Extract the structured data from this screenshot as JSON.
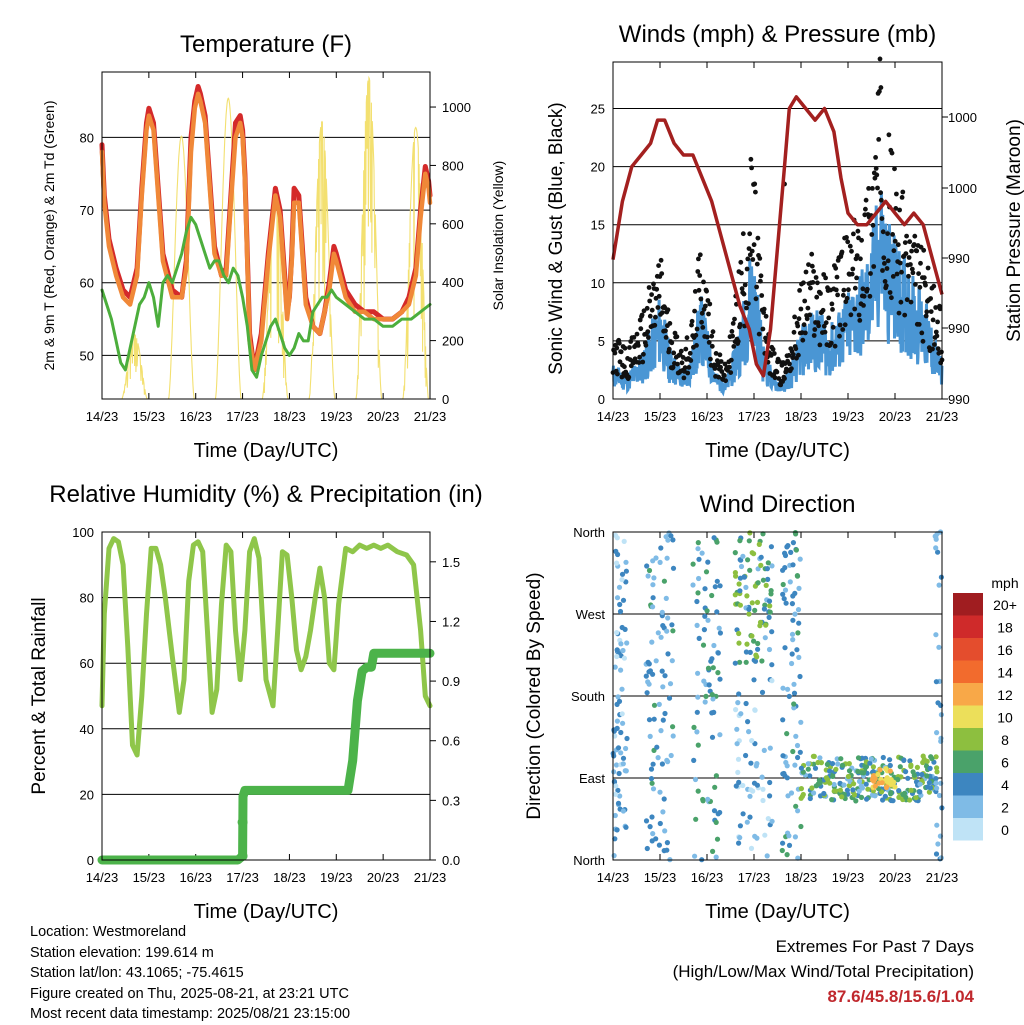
{
  "chart_data": [
    {
      "type": "line",
      "title": "Temperature (F)",
      "xlabel": "Time (Day/UTC)",
      "ylabel": "2m & 9m T (Red, Orange) & 2m Td (Green)",
      "y2label": "Solar Insolation (Yellow)",
      "x_ticks": [
        "14/23",
        "15/23",
        "16/23",
        "17/23",
        "18/23",
        "19/23",
        "20/23",
        "21/23"
      ],
      "xlim": [
        0,
        7
      ],
      "ylim": [
        44,
        89
      ],
      "y_ticks": [
        50,
        60,
        70,
        80
      ],
      "y2lim": [
        0,
        1120
      ],
      "y2_ticks": [
        0,
        200,
        400,
        600,
        800,
        1000
      ],
      "grid": "horizontal",
      "series": [
        {
          "color": "#d42a2a",
          "x": [
            0,
            0.05,
            0.15,
            0.3,
            0.45,
            0.6,
            0.75,
            0.85,
            0.95,
            1.0,
            1.05,
            1.1,
            1.2,
            1.3,
            1.5,
            1.7,
            1.8,
            1.9,
            1.98,
            2.05,
            2.1,
            2.2,
            2.4,
            2.55,
            2.65,
            2.75,
            2.85,
            2.95,
            3.0,
            3.05,
            3.1,
            3.15,
            3.25,
            3.4,
            3.55,
            3.7,
            3.8,
            3.9,
            3.95,
            4.0,
            4.05,
            4.1,
            4.2,
            4.35,
            4.5,
            4.65,
            4.75,
            4.85,
            4.95,
            5.0,
            5.2,
            5.4,
            5.6,
            5.8,
            6.0,
            6.2,
            6.4,
            6.55,
            6.7,
            6.8,
            6.9,
            6.97,
            7.0
          ],
          "values": [
            79,
            72,
            66,
            62,
            59,
            58,
            62,
            73,
            82,
            84,
            83,
            82,
            73,
            64,
            59,
            58,
            63,
            80,
            85,
            87,
            86,
            83,
            65,
            61,
            62,
            72,
            82,
            83,
            81,
            75,
            64,
            53,
            48,
            53,
            64,
            73,
            70,
            61,
            56,
            58,
            64,
            73,
            72,
            58,
            54,
            53,
            56,
            60,
            65,
            64,
            59,
            57,
            56,
            56,
            55,
            55,
            56,
            58,
            62,
            70,
            76,
            74,
            72
          ]
        },
        {
          "color": "#f08838",
          "x": [
            0,
            0.05,
            0.15,
            0.3,
            0.45,
            0.6,
            0.75,
            0.85,
            0.95,
            1.0,
            1.05,
            1.1,
            1.2,
            1.3,
            1.5,
            1.7,
            1.8,
            1.9,
            1.98,
            2.05,
            2.1,
            2.2,
            2.4,
            2.55,
            2.65,
            2.75,
            2.85,
            2.95,
            3.0,
            3.05,
            3.1,
            3.15,
            3.25,
            3.4,
            3.55,
            3.7,
            3.8,
            3.9,
            3.95,
            4.0,
            4.05,
            4.1,
            4.2,
            4.35,
            4.5,
            4.65,
            4.75,
            4.85,
            4.95,
            5.0,
            5.2,
            5.4,
            5.6,
            5.8,
            6.0,
            6.2,
            6.4,
            6.55,
            6.7,
            6.8,
            6.9,
            6.97,
            7.0
          ],
          "values": [
            78,
            71,
            65,
            61,
            58,
            57,
            61,
            72,
            81,
            83,
            82,
            81,
            72,
            63,
            58,
            58,
            62,
            78,
            84,
            86,
            85,
            82,
            64,
            61,
            61,
            71,
            80,
            82,
            80,
            74,
            63,
            52,
            48,
            52,
            63,
            72,
            69,
            60,
            55,
            58,
            63,
            71,
            71,
            57,
            54,
            53,
            56,
            59,
            64,
            63,
            58,
            56,
            56,
            55,
            55,
            55,
            56,
            57,
            61,
            69,
            75,
            73,
            71
          ]
        },
        {
          "color": "#4cae3c",
          "x": [
            0,
            0.1,
            0.2,
            0.3,
            0.4,
            0.5,
            0.6,
            0.7,
            0.8,
            0.9,
            1.0,
            1.1,
            1.2,
            1.3,
            1.4,
            1.5,
            1.6,
            1.7,
            1.8,
            1.9,
            2.0,
            2.1,
            2.2,
            2.3,
            2.4,
            2.5,
            2.6,
            2.7,
            2.8,
            2.9,
            3.0,
            3.1,
            3.2,
            3.3,
            3.4,
            3.5,
            3.6,
            3.7,
            3.8,
            3.9,
            4.0,
            4.1,
            4.2,
            4.3,
            4.4,
            4.5,
            4.6,
            4.7,
            4.8,
            4.9,
            5.0,
            5.2,
            5.4,
            5.6,
            5.8,
            6.0,
            6.2,
            6.4,
            6.6,
            6.8,
            7.0
          ],
          "values": [
            59,
            57,
            55,
            52,
            49,
            48,
            51,
            54,
            57,
            58,
            60,
            58,
            54,
            60,
            61,
            60,
            62,
            64,
            67,
            69,
            68,
            66,
            64,
            62,
            63,
            63,
            61,
            60,
            62,
            61,
            58,
            54,
            48,
            47,
            50,
            52,
            54,
            55,
            53,
            51,
            50,
            51,
            53,
            52,
            52,
            56,
            57,
            58,
            58,
            59,
            58,
            57,
            56,
            55,
            55,
            54,
            54,
            55,
            55,
            56,
            57
          ]
        }
      ],
      "insolation": {
        "color": "#f3e070",
        "days": [
          0,
          1,
          2,
          3,
          4,
          5,
          6
        ],
        "peaks": [
          220,
          900,
          1030,
          700,
          950,
          1100,
          930
        ]
      }
    },
    {
      "type": "scatter",
      "title": "Winds (mph) & Pressure (mb)",
      "xlabel": "Time (Day/UTC)",
      "ylabel": "Sonic Wind & Gust (Blue, Black)",
      "y2label": "Station Pressure (Maroon)",
      "x_ticks": [
        "14/23",
        "15/23",
        "16/23",
        "17/23",
        "18/23",
        "19/23",
        "20/23",
        "21/23"
      ],
      "xlim": [
        0,
        7
      ],
      "ylim": [
        0,
        29
      ],
      "y_ticks": [
        0,
        5,
        10,
        15,
        20,
        25
      ],
      "y2_ticks": [
        "990",
        "990",
        "990",
        "1000",
        "1000"
      ],
      "grid": "horizontal",
      "series": [
        {
          "name": "",
          "color": "#111111",
          "x": [
            0,
            0.3,
            0.6,
            0.9,
            1.0,
            1.2,
            1.5,
            1.7,
            1.8,
            1.9,
            2.0,
            2.2,
            2.4,
            2.6,
            2.8,
            2.95,
            3.05,
            3.2,
            3.4,
            3.6,
            3.8,
            4.0,
            4.2,
            4.4,
            4.6,
            4.8,
            5.0,
            5.2,
            5.4,
            5.5,
            5.6,
            5.7,
            5.8,
            6.0,
            6.2,
            6.4,
            6.6,
            6.8,
            7.0
          ],
          "values": [
            4,
            3,
            5,
            8,
            9,
            5,
            3,
            5,
            8,
            10,
            7,
            3,
            2,
            6,
            11,
            15,
            12,
            6,
            3,
            2,
            4,
            7,
            9,
            8,
            7,
            9,
            10,
            11,
            13,
            15,
            18,
            21,
            17,
            14,
            12,
            10,
            9,
            7,
            5
          ]
        },
        {
          "name": "",
          "color": "#4a96d4",
          "x": [
            0,
            0.3,
            0.6,
            0.9,
            1.0,
            1.2,
            1.5,
            1.7,
            1.8,
            1.9,
            2.0,
            2.2,
            2.4,
            2.6,
            2.8,
            2.95,
            3.05,
            3.2,
            3.4,
            3.6,
            3.8,
            4.0,
            4.2,
            4.4,
            4.6,
            4.8,
            5.0,
            5.2,
            5.4,
            5.5,
            5.6,
            5.7,
            5.8,
            6.0,
            6.2,
            6.4,
            6.6,
            6.8,
            7.0
          ],
          "values": [
            2,
            1.5,
            2.5,
            5,
            6,
            3,
            1.5,
            3,
            5,
            6,
            4,
            1.5,
            1,
            3,
            6,
            9,
            7,
            3,
            1.5,
            1,
            2,
            4,
            5,
            5,
            4,
            5,
            6,
            7,
            8,
            9,
            11,
            13,
            11,
            9,
            8,
            7,
            6,
            4,
            2
          ]
        },
        {
          "name": "",
          "color": "#a3201f",
          "x": [
            0,
            0.2,
            0.4,
            0.6,
            0.8,
            0.95,
            1.1,
            1.3,
            1.5,
            1.7,
            1.9,
            2.1,
            2.3,
            2.5,
            2.7,
            2.9,
            3.05,
            3.2,
            3.35,
            3.5,
            3.65,
            3.75,
            3.9,
            4.1,
            4.3,
            4.5,
            4.7,
            4.85,
            5.0,
            5.2,
            5.4,
            5.6,
            5.8,
            6.0,
            6.2,
            6.4,
            6.6,
            6.8,
            7.0
          ],
          "values": [
            12,
            17,
            20,
            21,
            22,
            24,
            24,
            22,
            21,
            21,
            19,
            17,
            14,
            11,
            8,
            6,
            3,
            2,
            6,
            13,
            20,
            25,
            26,
            25,
            24,
            25,
            23,
            19,
            16,
            15,
            15,
            16,
            17,
            16,
            15,
            16,
            15,
            12,
            9
          ]
        }
      ]
    },
    {
      "type": "line",
      "title": "Relative Humidity (%) & Precipitation (in)",
      "xlabel": "Time (Day/UTC)",
      "ylabel": "Percent & Total Rainfall",
      "x_ticks": [
        "14/23",
        "15/23",
        "16/23",
        "17/23",
        "18/23",
        "19/23",
        "20/23",
        "21/23"
      ],
      "xlim": [
        0,
        7
      ],
      "ylim": [
        0,
        100
      ],
      "y_ticks": [
        0,
        20,
        40,
        60,
        80,
        100
      ],
      "y2lim": [
        0,
        1.65
      ],
      "y2_ticks": [
        "0.0",
        "0.3",
        "0.6",
        "0.9",
        "1.2",
        "1.5"
      ],
      "grid": "horizontal",
      "series": [
        {
          "color": "#8fc64a",
          "x": [
            0,
            0.05,
            0.15,
            0.25,
            0.35,
            0.45,
            0.55,
            0.65,
            0.75,
            0.85,
            0.95,
            1.05,
            1.15,
            1.25,
            1.35,
            1.5,
            1.65,
            1.75,
            1.85,
            1.95,
            2.05,
            2.15,
            2.25,
            2.35,
            2.45,
            2.55,
            2.65,
            2.75,
            2.85,
            2.95,
            3.05,
            3.15,
            3.25,
            3.35,
            3.5,
            3.65,
            3.75,
            3.85,
            3.95,
            4.05,
            4.15,
            4.25,
            4.35,
            4.45,
            4.55,
            4.65,
            4.75,
            4.85,
            4.95,
            5.05,
            5.2,
            5.35,
            5.5,
            5.65,
            5.8,
            5.95,
            6.1,
            6.3,
            6.5,
            6.65,
            6.8,
            6.9,
            7.0
          ],
          "values": [
            47,
            75,
            95,
            98,
            97,
            90,
            65,
            35,
            32,
            50,
            75,
            95,
            95,
            90,
            80,
            62,
            45,
            55,
            85,
            96,
            97,
            94,
            70,
            45,
            52,
            78,
            96,
            94,
            70,
            55,
            70,
            94,
            98,
            92,
            55,
            47,
            70,
            94,
            93,
            80,
            64,
            58,
            62,
            70,
            80,
            89,
            80,
            60,
            58,
            78,
            95,
            94,
            96,
            95,
            96,
            95,
            96,
            94,
            93,
            90,
            70,
            50,
            47
          ]
        },
        {
          "color": "#4cb34a",
          "x": [
            0,
            0.5,
            1.0,
            1.5,
            2.0,
            2.5,
            2.9,
            3.0,
            3.01,
            3.05,
            3.1,
            3.2,
            3.6,
            4.0,
            4.5,
            5.0,
            5.25,
            5.35,
            5.45,
            5.55,
            5.65,
            5.75,
            5.8,
            6.0,
            6.5,
            7.0
          ],
          "values": [
            0,
            0,
            0,
            0,
            0,
            0,
            0,
            0.02,
            0.32,
            0.35,
            0.35,
            0.35,
            0.35,
            0.35,
            0.35,
            0.35,
            0.35,
            0.5,
            0.8,
            0.95,
            0.97,
            0.97,
            1.04,
            1.04,
            1.04,
            1.04
          ]
        }
      ]
    },
    {
      "type": "scatter",
      "title": "Wind Direction",
      "xlabel": "Time (Day/UTC)",
      "ylabel": "Direction (Colored By Speed)",
      "x_ticks": [
        "14/23",
        "15/23",
        "16/23",
        "17/23",
        "18/23",
        "19/23",
        "20/23",
        "21/23"
      ],
      "xlim": [
        0,
        7
      ],
      "y_ticks": [
        "North",
        "West",
        "South",
        "East",
        "North"
      ],
      "grid": "horizontal",
      "legend": {
        "title": "mph",
        "placement": "right",
        "labels": [
          "20+",
          "18",
          "16",
          "14",
          "12",
          "10",
          "8",
          "6",
          "4",
          "2",
          "0"
        ],
        "colors": [
          "#a01d20",
          "#cf2a2a",
          "#e44d2d",
          "#f26b2d",
          "#f8a848",
          "#ecdf5a",
          "#8dbf3f",
          "#4aa26a",
          "#3d86c0",
          "#7fbbe6",
          "#bfe3f6"
        ]
      }
    }
  ],
  "info": {
    "location": "Location: Westmoreland",
    "elevation": "Station elevation: 199.614 m",
    "latlon": "Station lat/lon: 43.1065; -75.4615",
    "created": "Figure created on Thu, 2025-08-21, at 23:21 UTC",
    "latest": "Most recent data timestamp: 2025/08/21 23:15:00"
  },
  "extremes": {
    "title": "Extremes For Past 7 Days",
    "subtitle": "(High/Low/Max Wind/Total Precipitation)",
    "values": "87.6/45.8/15.6/1.04"
  }
}
